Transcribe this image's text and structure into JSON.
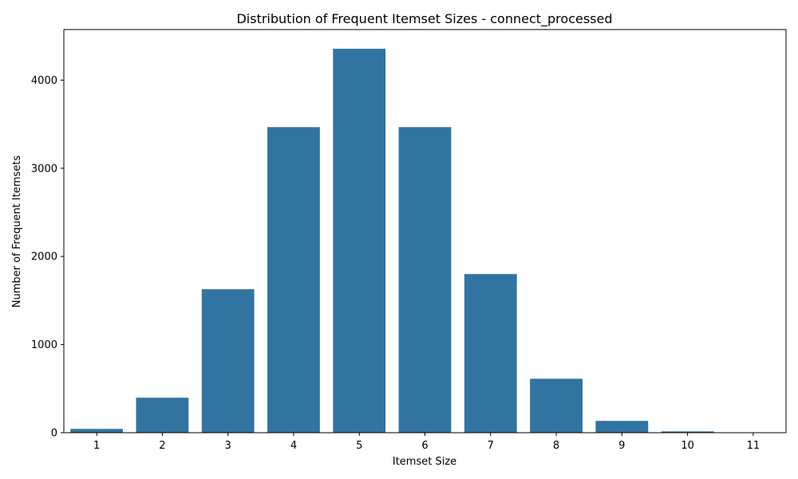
{
  "chart_data": {
    "type": "bar",
    "title": "Distribution of Frequent Itemset Sizes - connect_processed",
    "xlabel": "Itemset Size",
    "ylabel": "Number of Frequent Itemsets",
    "categories": [
      "1",
      "2",
      "3",
      "4",
      "5",
      "6",
      "7",
      "8",
      "9",
      "10",
      "11"
    ],
    "values": [
      43,
      397,
      1628,
      3467,
      4356,
      3467,
      1800,
      612,
      134,
      15,
      1
    ],
    "ylim": [
      0,
      4574
    ],
    "yticks": [
      0,
      1000,
      2000,
      3000,
      4000
    ],
    "grid": false,
    "bar_color": "#3274a1"
  }
}
